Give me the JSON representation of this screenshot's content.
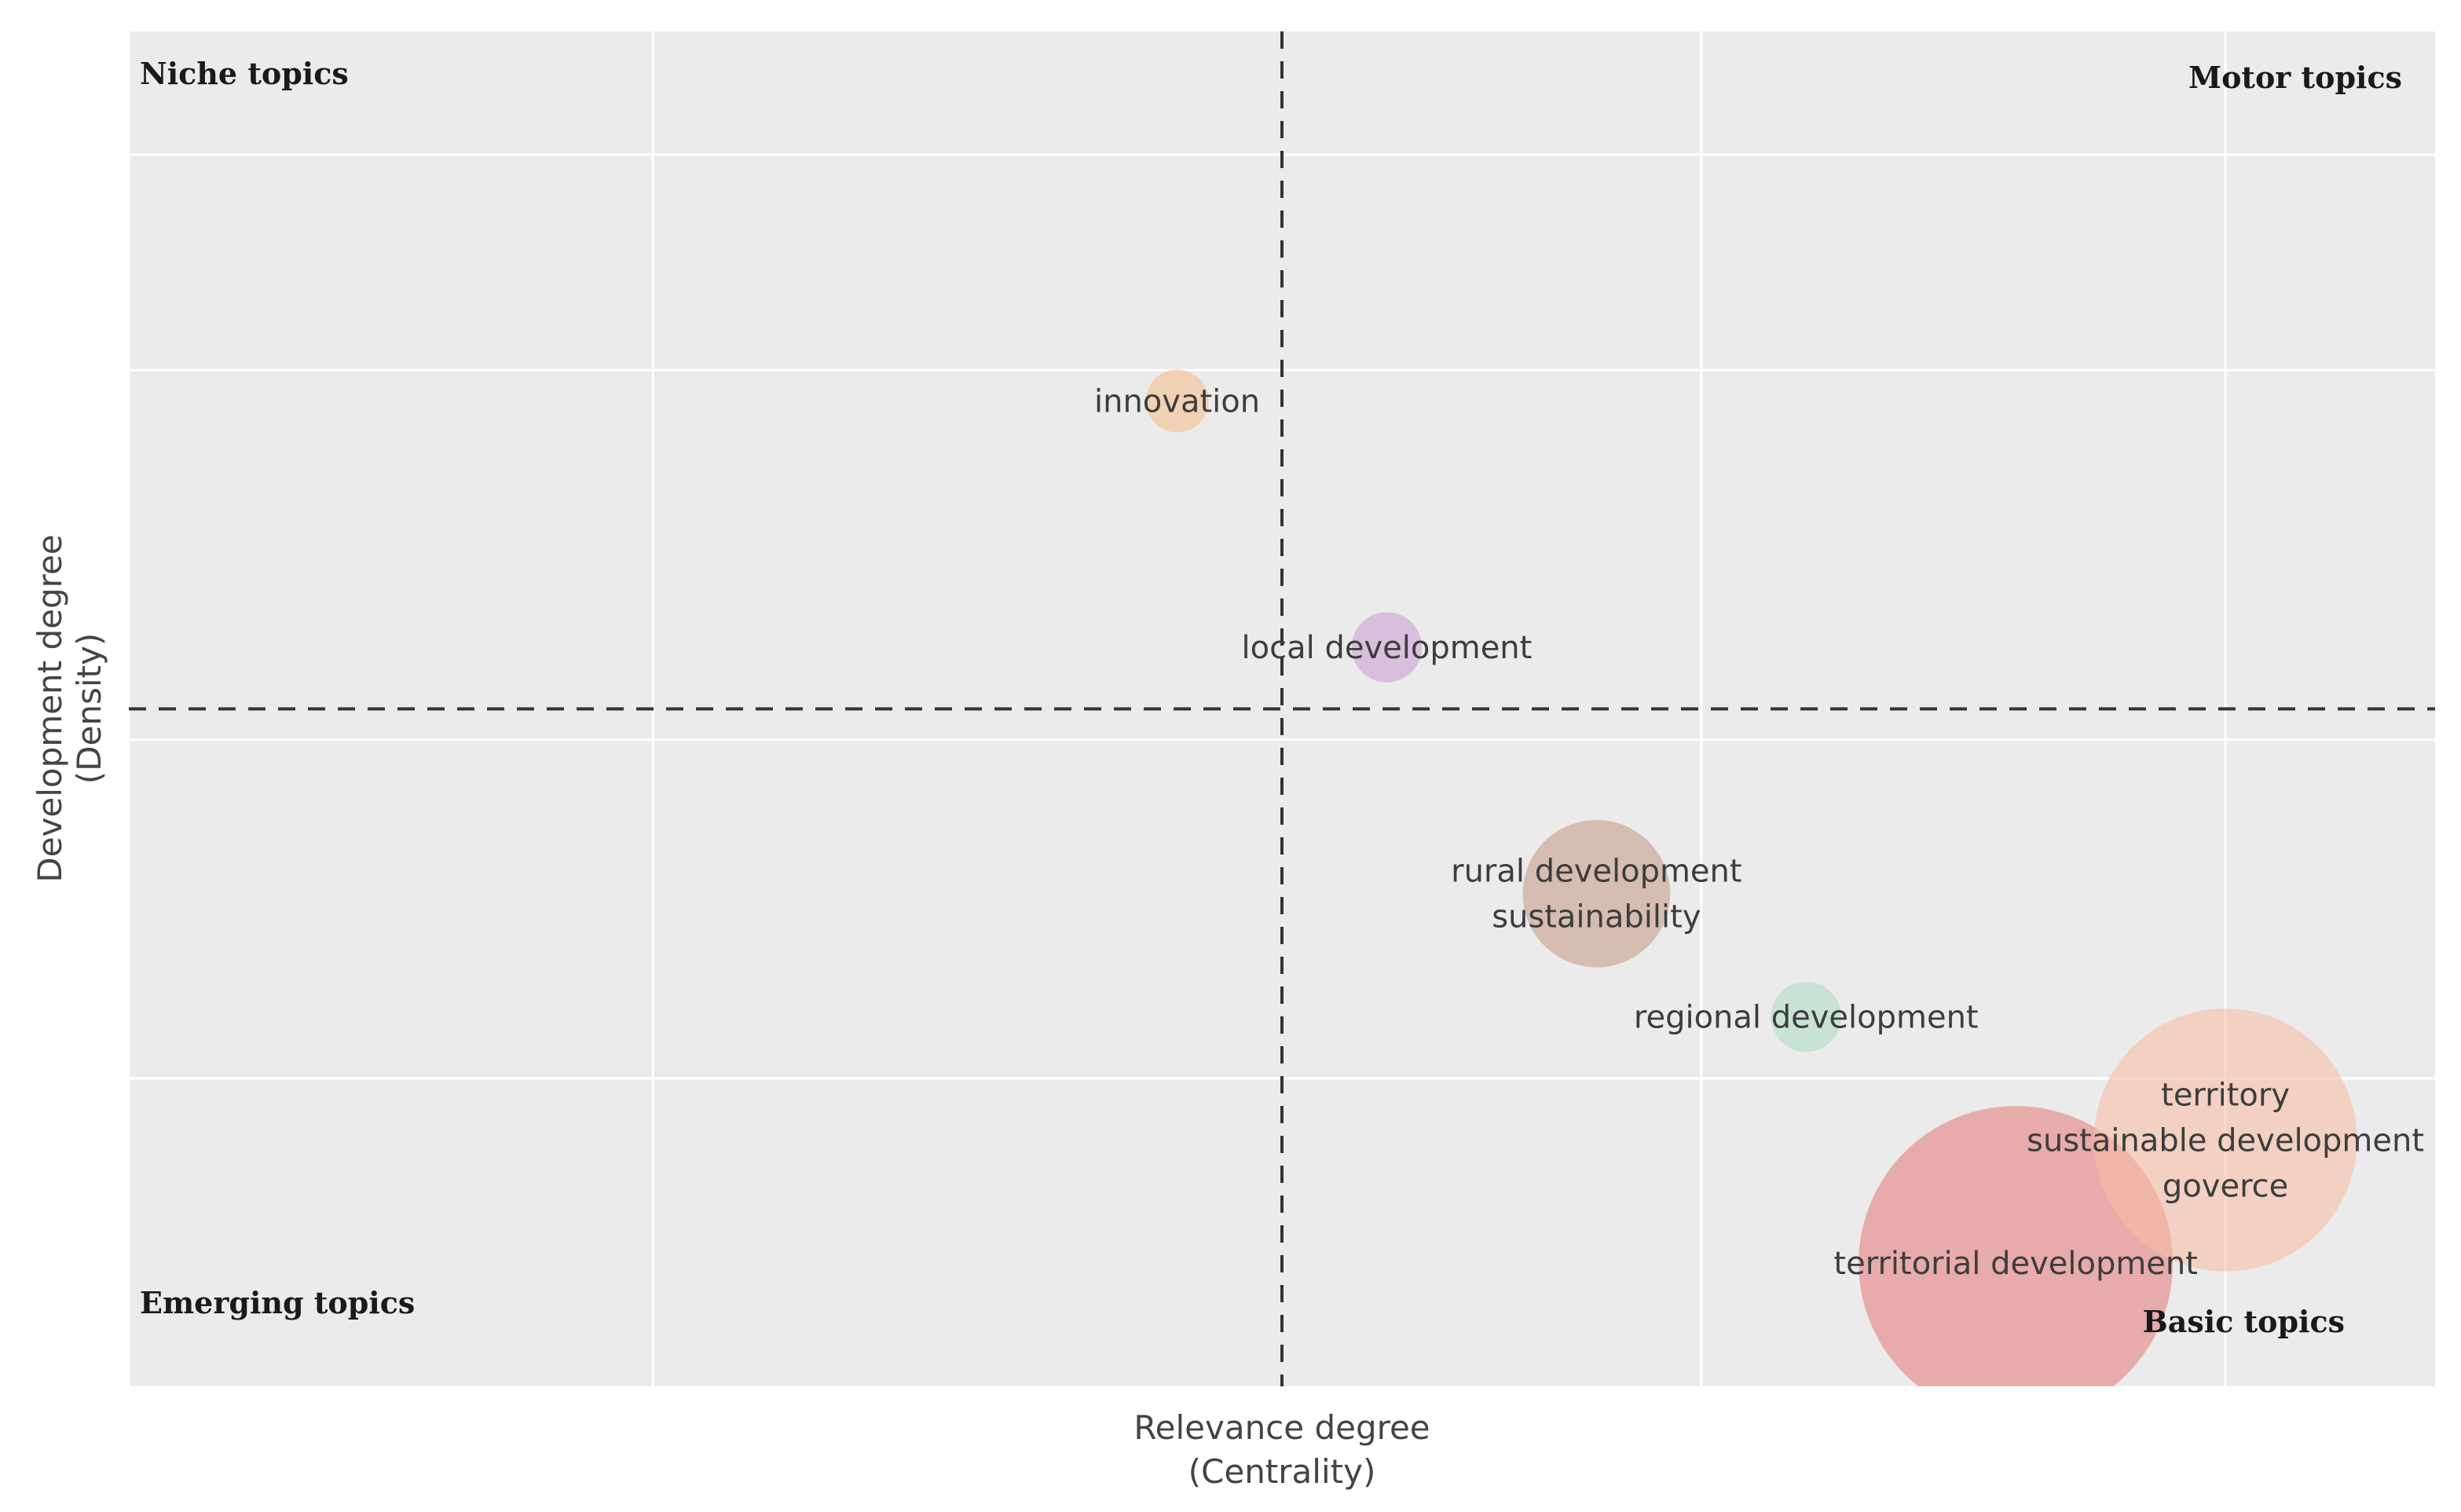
{
  "chart_data": {
    "type": "scatter",
    "subtype": "bubble",
    "xlabel": [
      "Relevance degree",
      "(Centrality)"
    ],
    "ylabel": [
      "Development degree",
      "(Density)"
    ],
    "xlim": [
      0,
      11
    ],
    "ylim": [
      0,
      11
    ],
    "reference_lines": {
      "x": 5.5,
      "y": 5.5,
      "style": "dashed"
    },
    "grid": true,
    "quadrant_labels": {
      "top_left": "Niche topics",
      "top_right": "Motor topics",
      "bottom_left": "Emerging topics",
      "bottom_right": "Basic topics"
    },
    "points": [
      {
        "lines": [
          "innovation"
        ],
        "x": 5.0,
        "y": 8.0,
        "size": 4,
        "color": "#f5c08f"
      },
      {
        "lines": [
          "local development"
        ],
        "x": 6.0,
        "y": 6.0,
        "size": 5,
        "color": "#c9a2d4"
      },
      {
        "lines": [
          "rural development",
          "sustainability"
        ],
        "x": 7.0,
        "y": 4.0,
        "size": 22,
        "color": "#c89f8a"
      },
      {
        "lines": [
          "regional development"
        ],
        "x": 8.0,
        "y": 3.0,
        "size": 5,
        "color": "#b0dcc8"
      },
      {
        "lines": [
          "territorial development"
        ],
        "x": 9.0,
        "y": 1.0,
        "size": 100,
        "color": "#e58080"
      },
      {
        "lines": [
          "territory",
          "sustainable development",
          "goverce"
        ],
        "x": 10.0,
        "y": 2.0,
        "size": 70,
        "color": "#f7bea6"
      }
    ]
  }
}
